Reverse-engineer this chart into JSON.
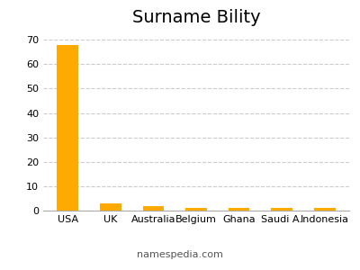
{
  "title": "Surname Bility",
  "categories": [
    "USA",
    "UK",
    "Australia",
    "Belgium",
    "Ghana",
    "Saudi A.",
    "Indonesia"
  ],
  "values": [
    68,
    3,
    2,
    1,
    1,
    1,
    1
  ],
  "bar_color": "#FFAA00",
  "background_color": "#ffffff",
  "ylim": [
    0,
    73
  ],
  "yticks": [
    0,
    10,
    20,
    30,
    40,
    50,
    60,
    70
  ],
  "grid_color": "#cccccc",
  "title_fontsize": 14,
  "tick_fontsize": 8,
  "footer_text": "namespedia.com",
  "footer_fontsize": 8,
  "bar_width": 0.5
}
